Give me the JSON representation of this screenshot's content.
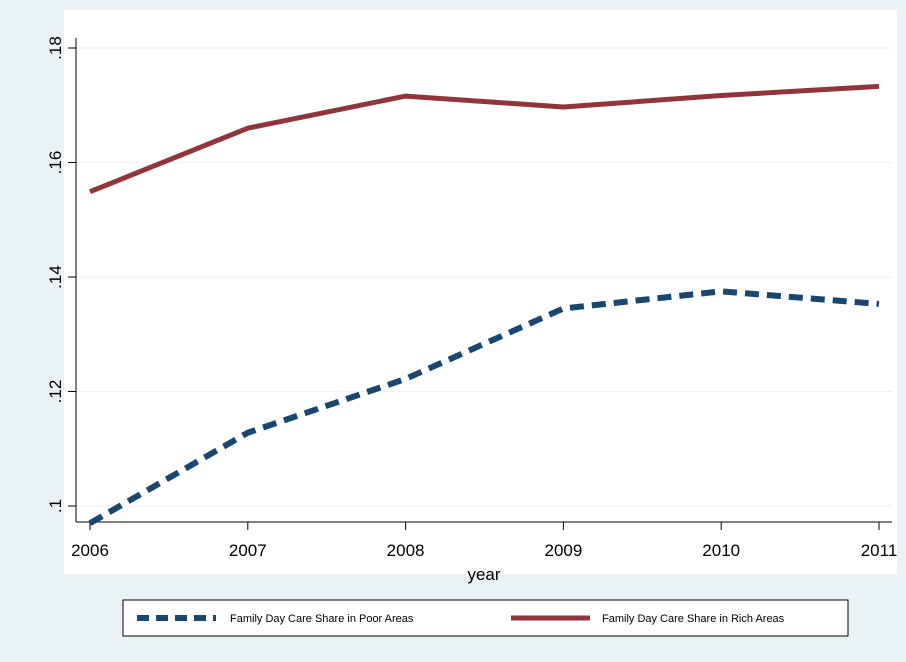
{
  "chart_data": {
    "type": "line",
    "title": "",
    "xlabel": "year",
    "ylabel": "",
    "x": [
      2006,
      2007,
      2008,
      2009,
      2010,
      2011
    ],
    "xlim": [
      2006,
      2011
    ],
    "ylim": [
      0.1,
      0.18
    ],
    "x_ticks": [
      {
        "value": 2006,
        "label": "2006"
      },
      {
        "value": 2007,
        "label": "2007"
      },
      {
        "value": 2008,
        "label": "2008"
      },
      {
        "value": 2009,
        "label": "2009"
      },
      {
        "value": 2010,
        "label": "2010"
      },
      {
        "value": 2011,
        "label": "2011"
      }
    ],
    "y_ticks": [
      {
        "value": 0.1,
        "label": ".1"
      },
      {
        "value": 0.12,
        "label": ".12"
      },
      {
        "value": 0.14,
        "label": ".14"
      },
      {
        "value": 0.16,
        "label": ".16"
      },
      {
        "value": 0.18,
        "label": ".18"
      }
    ],
    "grid": true,
    "legend_position": "bottom",
    "series": [
      {
        "name": "Family Day Care Share in Poor Areas",
        "values": [
          0.097,
          0.1128,
          0.1222,
          0.1345,
          0.1375,
          0.1353
        ],
        "color": "#1a476f",
        "style": "dashed"
      },
      {
        "name": "Family Day Care Share in Rich Areas",
        "values": [
          0.1549,
          0.166,
          0.1716,
          0.1697,
          0.1717,
          0.1733
        ],
        "color": "#90353b",
        "style": "solid"
      }
    ]
  }
}
